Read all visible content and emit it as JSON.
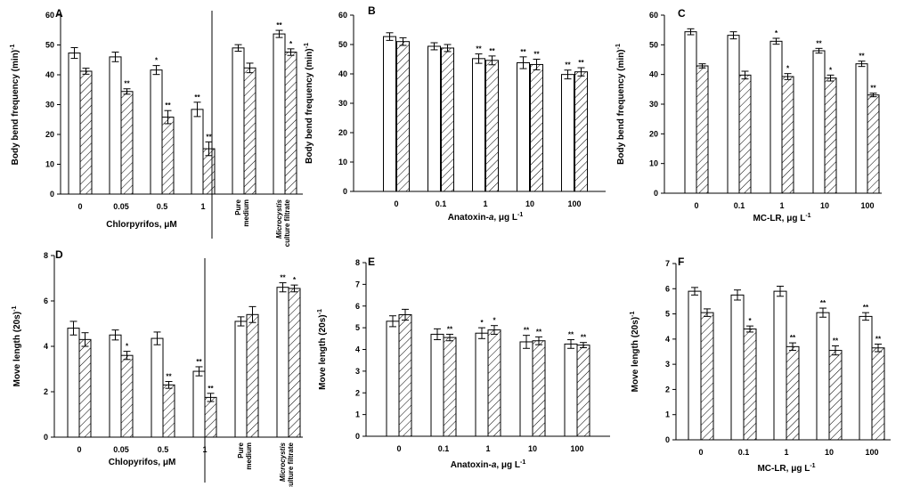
{
  "chart_data": [
    {
      "type": "bar",
      "panel": "A",
      "ylabel": "Body bend frequency (min)⁻¹",
      "xlabel": "Chlorpyrifos, μM",
      "ylim": [
        0,
        60
      ],
      "yticks": [
        0,
        10,
        20,
        30,
        40,
        50,
        60
      ],
      "categories": [
        "0",
        "0.05",
        "0.5",
        "1",
        "Pure medium",
        "Microcystis culture filtrate"
      ],
      "separator_after": 3,
      "series": [
        {
          "name": "open",
          "values": [
            47.3,
            46.0,
            41.6,
            28.4,
            49.0,
            53.7
          ],
          "errors": [
            1.8,
            1.6,
            1.5,
            2.4,
            1.1,
            1.2
          ],
          "sig": [
            "",
            "",
            "*",
            "**",
            "",
            "**"
          ]
        },
        {
          "name": "hatched",
          "values": [
            41.2,
            34.4,
            25.8,
            15.2,
            42.3,
            47.6
          ],
          "errors": [
            1.0,
            0.9,
            2.2,
            2.3,
            1.6,
            1.1
          ],
          "sig": [
            "",
            "**",
            "**",
            "**",
            "",
            "*"
          ]
        }
      ]
    },
    {
      "type": "bar",
      "panel": "B",
      "ylabel": "Body bend frequency (min)⁻¹",
      "xlabel": "Anatoxin-a, μg L⁻¹",
      "ylim": [
        0,
        60
      ],
      "yticks": [
        0,
        10,
        20,
        30,
        40,
        50,
        60
      ],
      "categories": [
        "0",
        "0.1",
        "1",
        "10",
        "100"
      ],
      "series": [
        {
          "name": "open",
          "values": [
            52.7,
            49.4,
            45.2,
            43.8,
            39.8
          ],
          "errors": [
            1.3,
            1.2,
            1.6,
            2.0,
            1.5
          ],
          "sig": [
            "",
            "",
            "**",
            "**",
            "**"
          ]
        },
        {
          "name": "hatched",
          "values": [
            51.0,
            48.8,
            44.6,
            43.2,
            40.7
          ],
          "errors": [
            1.3,
            1.2,
            1.5,
            1.8,
            1.4
          ],
          "sig": [
            "",
            "",
            "**",
            "**",
            "**"
          ]
        }
      ]
    },
    {
      "type": "bar",
      "panel": "C",
      "ylabel": "Body bend frequency (min)⁻¹",
      "xlabel": "MC-LR, μg L⁻¹",
      "ylim": [
        0,
        60
      ],
      "yticks": [
        0,
        10,
        20,
        30,
        40,
        50,
        60
      ],
      "categories": [
        "0",
        "0.1",
        "1",
        "10",
        "100"
      ],
      "series": [
        {
          "name": "open",
          "values": [
            54.4,
            53.2,
            51.2,
            48.0,
            43.6
          ],
          "errors": [
            1.0,
            1.2,
            1.0,
            0.8,
            0.9
          ],
          "sig": [
            "",
            "",
            "*",
            "**",
            "**"
          ]
        },
        {
          "name": "hatched",
          "values": [
            42.9,
            39.8,
            39.3,
            38.8,
            33.1
          ],
          "errors": [
            0.7,
            1.3,
            1.0,
            1.0,
            0.6
          ],
          "sig": [
            "",
            "",
            "*",
            "*",
            "**"
          ]
        }
      ]
    },
    {
      "type": "bar",
      "panel": "D",
      "ylabel": "Move length (20s)⁻¹",
      "xlabel": "Chlopyrifos, μM",
      "ylim": [
        0,
        8
      ],
      "yticks": [
        0,
        2,
        4,
        6,
        8
      ],
      "categories": [
        "0",
        "0.05",
        "0.5",
        "1",
        "Pure medium",
        "Microcystis culture filtrate"
      ],
      "separator_after": 3,
      "series": [
        {
          "name": "open",
          "values": [
            4.8,
            4.5,
            4.35,
            2.9,
            5.1,
            6.6
          ],
          "errors": [
            0.3,
            0.22,
            0.28,
            0.2,
            0.2,
            0.2
          ],
          "sig": [
            "",
            "",
            "",
            "**",
            "",
            "**"
          ]
        },
        {
          "name": "hatched",
          "values": [
            4.3,
            3.6,
            2.3,
            1.75,
            5.4,
            6.55
          ],
          "errors": [
            0.3,
            0.18,
            0.15,
            0.18,
            0.35,
            0.15
          ],
          "sig": [
            "",
            "*",
            "**",
            "**",
            "",
            "*"
          ]
        }
      ]
    },
    {
      "type": "bar",
      "panel": "E",
      "ylabel": "Move length (20s)⁻¹",
      "xlabel": "Anatoxin-a, μg L⁻¹",
      "ylim": [
        0,
        8
      ],
      "yticks": [
        0,
        1,
        2,
        3,
        4,
        5,
        6,
        7,
        8
      ],
      "categories": [
        "0",
        "0.1",
        "1",
        "10",
        "100"
      ],
      "series": [
        {
          "name": "open",
          "values": [
            5.3,
            4.7,
            4.75,
            4.35,
            4.25
          ],
          "errors": [
            0.25,
            0.25,
            0.25,
            0.3,
            0.2
          ],
          "sig": [
            "",
            "",
            "*",
            "**",
            "**"
          ]
        },
        {
          "name": "hatched",
          "values": [
            5.6,
            4.55,
            4.9,
            4.4,
            4.2
          ],
          "errors": [
            0.25,
            0.15,
            0.2,
            0.18,
            0.12
          ],
          "sig": [
            "",
            "**",
            "*",
            "**",
            "**"
          ]
        }
      ]
    },
    {
      "type": "bar",
      "panel": "F",
      "ylabel": "Move length (20s)⁻¹",
      "xlabel": "MC-LR, μg L⁻¹",
      "ylim": [
        0,
        7
      ],
      "yticks": [
        0,
        1,
        2,
        3,
        4,
        5,
        6,
        7
      ],
      "categories": [
        "0",
        "0.1",
        "1",
        "10",
        "100"
      ],
      "series": [
        {
          "name": "open",
          "values": [
            5.9,
            5.75,
            5.9,
            5.05,
            4.9
          ],
          "errors": [
            0.15,
            0.2,
            0.2,
            0.18,
            0.15
          ],
          "sig": [
            "",
            "",
            "",
            "**",
            "**"
          ]
        },
        {
          "name": "hatched",
          "values": [
            5.05,
            4.4,
            3.7,
            3.55,
            3.65
          ],
          "errors": [
            0.15,
            0.12,
            0.15,
            0.18,
            0.15
          ],
          "sig": [
            "",
            "*",
            "**",
            "**",
            "**"
          ]
        }
      ]
    }
  ]
}
